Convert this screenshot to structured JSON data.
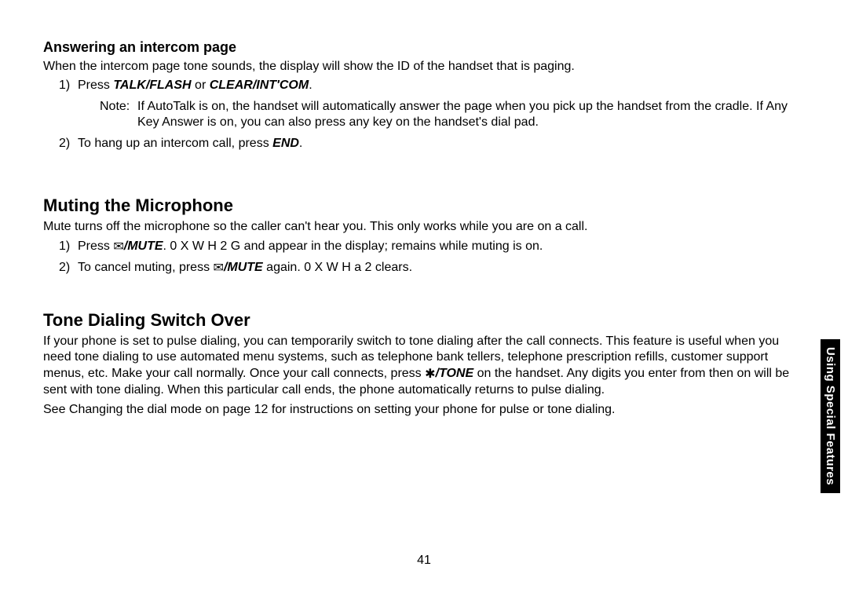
{
  "section1": {
    "heading": "Answering an intercom page",
    "intro": "When the intercom page tone sounds, the display will show the ID of the handset that is paging.",
    "step1_num": "1)",
    "step1_a": "Press ",
    "step1_b1": "TALK/FLASH",
    "step1_mid": " or ",
    "step1_b2": "CLEAR/INT'COM",
    "step1_c": ".",
    "note_label": "Note:",
    "note_body": "If AutoTalk is on, the handset will automatically answer the page when you pick up the handset from the cradle. If Any Key Answer is on, you can also press any key on the handset's dial pad.",
    "step2_num": "2)",
    "step2_a": "To hang up an intercom call, press ",
    "step2_b": "END",
    "step2_c": "."
  },
  "section2": {
    "heading": "Muting the Microphone",
    "intro": "Mute turns off the microphone so the caller can't hear you. This only works while you are on a call.",
    "step1_num": "1)",
    "step1_a": "Press ",
    "step1_mute": "/MUTE",
    "step1_b": ".  0 X W H   2 G  and appear in the display;      remains while muting is on.",
    "step2_num": "2)",
    "step2_a": "To cancel muting, press ",
    "step2_mute": "/MUTE",
    "step2_b": " again.  0 X W H a 2 clears."
  },
  "section3": {
    "heading": "Tone Dialing Switch Over",
    "p1a": "If your phone is set to pulse dialing, you can temporarily switch to tone dialing after the call connects. This feature is useful when you need tone dialing to use automated menu systems, such as telephone bank tellers, telephone prescription refills, customer support menus, etc. Make your call normally. Once your call connects, press ",
    "p1_tone": "/TONE",
    "p1b": " on the handset. Any digits you enter from then on will be sent with tone dialing. When this particular call ends, the phone automatically returns to pulse dialing.",
    "p2": "See Changing the dial mode on page 12 for instructions on setting your phone for pulse or tone dialing."
  },
  "page_number": "41",
  "side_tab": "Using Special Features",
  "icons": {
    "envelope": "✉",
    "star": "✱"
  }
}
